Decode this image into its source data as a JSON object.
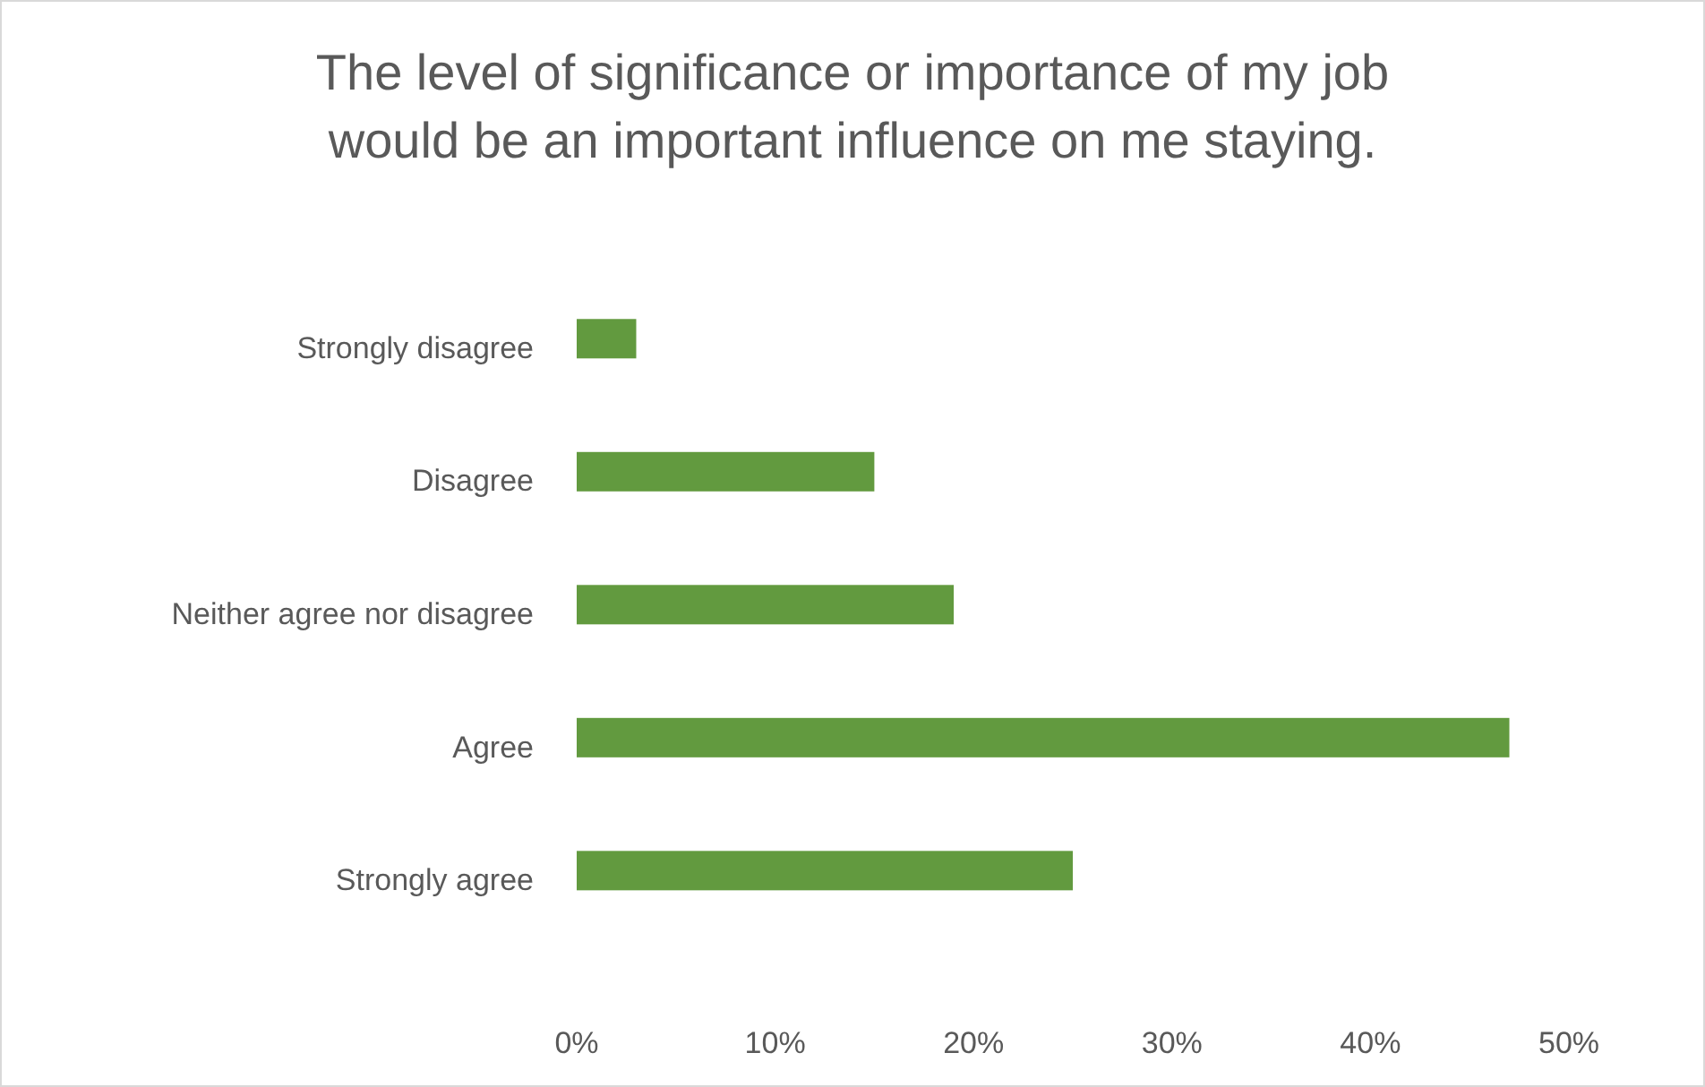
{
  "chart_data": {
    "type": "bar",
    "orientation": "horizontal",
    "title": "The level of significance or importance of my job would be an important influence on me staying.",
    "categories": [
      "Strongly disagree",
      "Disagree",
      "Neither agree nor disagree",
      "Agree",
      "Strongly agree"
    ],
    "series": [
      {
        "color": "#629a3f",
        "values": [
          3,
          15,
          19,
          47,
          25
        ]
      }
    ],
    "xlim": [
      0,
      50
    ],
    "xticks": [
      {
        "value": 0,
        "label": "0%"
      },
      {
        "value": 10,
        "label": "10%"
      },
      {
        "value": 20,
        "label": "20%"
      },
      {
        "value": 30,
        "label": "30%"
      },
      {
        "value": 40,
        "label": "40%"
      },
      {
        "value": 50,
        "label": "50%"
      }
    ],
    "grid": false
  }
}
